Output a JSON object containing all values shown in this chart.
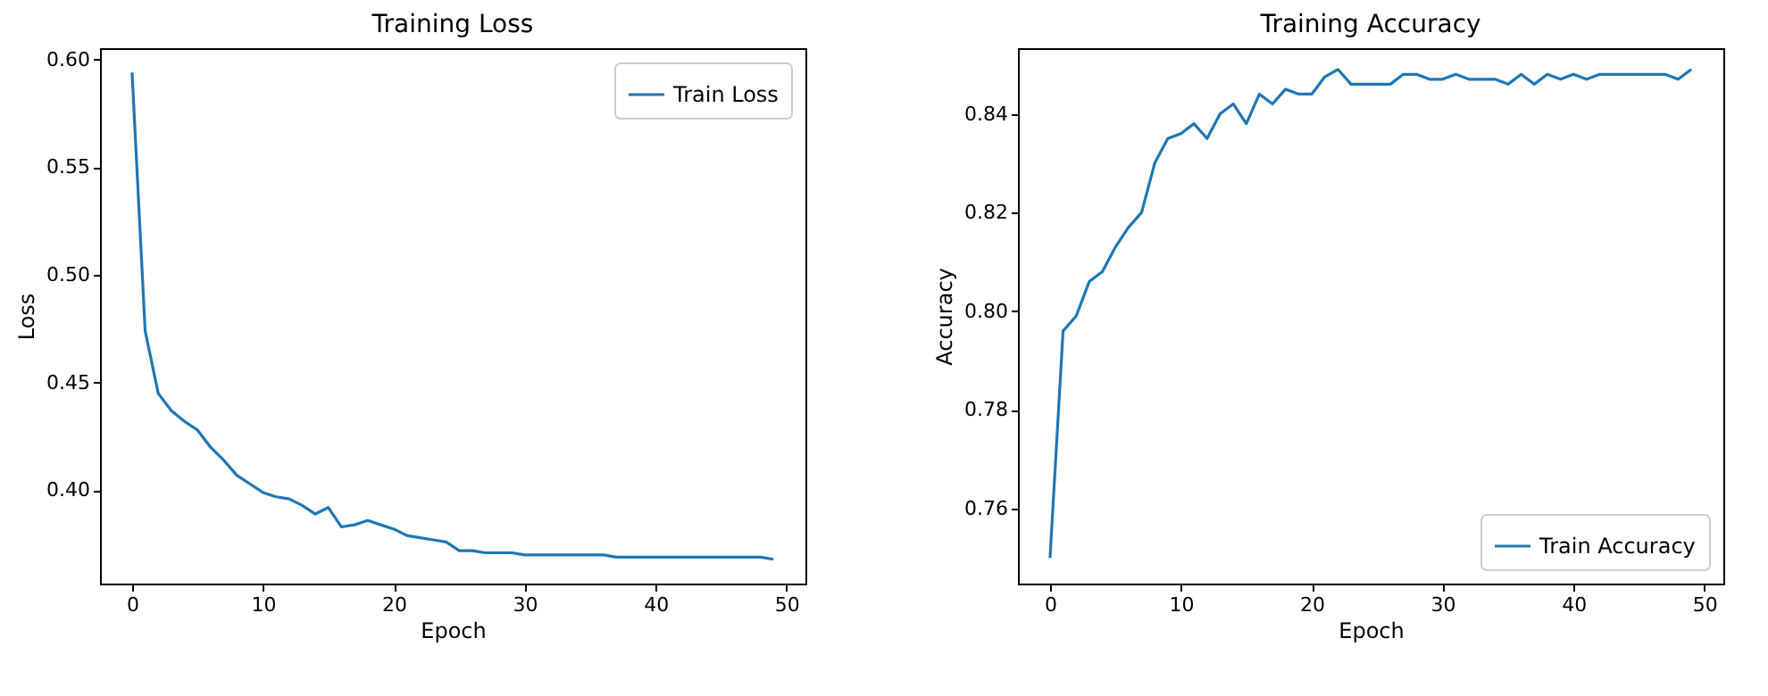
{
  "chart_data": [
    {
      "type": "line",
      "title": "Training Loss",
      "xlabel": "Epoch",
      "ylabel": "Loss",
      "legend": "top right",
      "grid": false,
      "x": [
        0,
        1,
        2,
        3,
        4,
        5,
        6,
        7,
        8,
        9,
        10,
        11,
        12,
        13,
        14,
        15,
        16,
        17,
        18,
        19,
        20,
        21,
        22,
        23,
        24,
        25,
        26,
        27,
        28,
        29,
        30,
        31,
        32,
        33,
        34,
        35,
        36,
        37,
        38,
        39,
        40,
        41,
        42,
        43,
        44,
        45,
        46,
        47,
        48,
        49
      ],
      "series": [
        {
          "name": "Train Loss",
          "color": "#1f77b4",
          "values": [
            0.594,
            0.474,
            0.445,
            0.437,
            0.432,
            0.428,
            0.42,
            0.414,
            0.407,
            0.403,
            0.399,
            0.397,
            0.396,
            0.393,
            0.389,
            0.392,
            0.383,
            0.384,
            0.386,
            0.384,
            0.382,
            0.379,
            0.378,
            0.377,
            0.376,
            0.372,
            0.372,
            0.371,
            0.371,
            0.371,
            0.37,
            0.37,
            0.37,
            0.37,
            0.37,
            0.37,
            0.37,
            0.369,
            0.369,
            0.369,
            0.369,
            0.369,
            0.369,
            0.369,
            0.369,
            0.369,
            0.369,
            0.369,
            0.369,
            0.368
          ]
        }
      ],
      "xlim": [
        -2.45,
        51.45
      ],
      "xticks": [
        0,
        10,
        20,
        30,
        40,
        50
      ],
      "ylim": [
        0.3567,
        0.6053
      ],
      "yticks": [
        {
          "value": 0.4,
          "label": "0.40"
        },
        {
          "value": 0.45,
          "label": "0.45"
        },
        {
          "value": 0.5,
          "label": "0.50"
        },
        {
          "value": 0.55,
          "label": "0.55"
        },
        {
          "value": 0.6,
          "label": "0.60"
        }
      ]
    },
    {
      "type": "line",
      "title": "Training Accuracy",
      "xlabel": "Epoch",
      "ylabel": "Accuracy",
      "legend": "bottom right",
      "grid": false,
      "x": [
        0,
        1,
        2,
        3,
        4,
        5,
        6,
        7,
        8,
        9,
        10,
        11,
        12,
        13,
        14,
        15,
        16,
        17,
        18,
        19,
        20,
        21,
        22,
        23,
        24,
        25,
        26,
        27,
        28,
        29,
        30,
        31,
        32,
        33,
        34,
        35,
        36,
        37,
        38,
        39,
        40,
        41,
        42,
        43,
        44,
        45,
        46,
        47,
        48,
        49
      ],
      "series": [
        {
          "name": "Train Accuracy",
          "color": "#1f77b4",
          "values": [
            0.75,
            0.796,
            0.799,
            0.806,
            0.808,
            0.813,
            0.817,
            0.82,
            0.83,
            0.835,
            0.836,
            0.838,
            0.835,
            0.84,
            0.842,
            0.838,
            0.844,
            0.842,
            0.845,
            0.844,
            0.844,
            0.8475,
            0.849,
            0.846,
            0.846,
            0.846,
            0.846,
            0.848,
            0.848,
            0.847,
            0.847,
            0.848,
            0.847,
            0.847,
            0.847,
            0.846,
            0.848,
            0.846,
            0.848,
            0.847,
            0.848,
            0.847,
            0.848,
            0.848,
            0.848,
            0.848,
            0.848,
            0.848,
            0.847,
            0.849
          ]
        }
      ],
      "xlim": [
        -2.45,
        51.45
      ],
      "xticks": [
        0,
        10,
        20,
        30,
        40,
        50
      ],
      "ylim": [
        0.7448,
        0.8533
      ],
      "yticks": [
        {
          "value": 0.76,
          "label": "0.76"
        },
        {
          "value": 0.78,
          "label": "0.78"
        },
        {
          "value": 0.8,
          "label": "0.80"
        },
        {
          "value": 0.82,
          "label": "0.82"
        },
        {
          "value": 0.84,
          "label": "0.84"
        }
      ]
    }
  ]
}
